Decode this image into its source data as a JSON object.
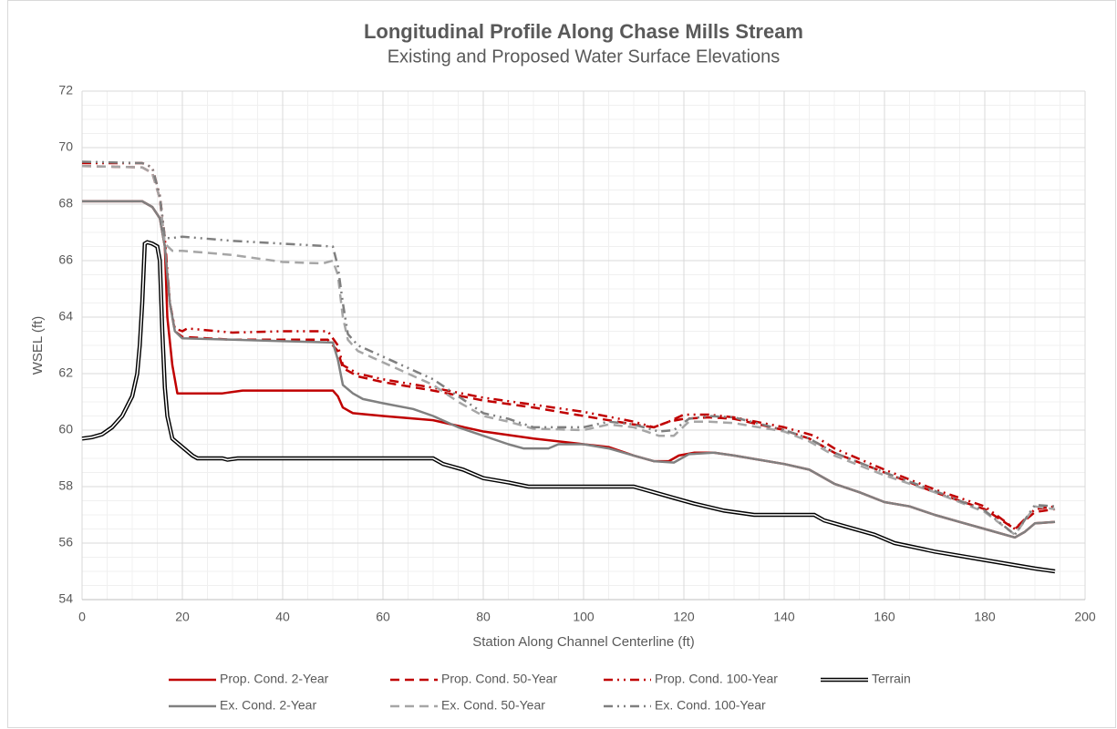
{
  "chart_data": {
    "type": "line",
    "title": "Longitudinal Profile Along Chase Mills Stream",
    "subtitle": "Existing and Proposed Water Surface Elevations",
    "x_label": "Station Along Channel Centerline (ft)",
    "y_label": "WSEL (ft)",
    "xlim": [
      0,
      200
    ],
    "xticks": [
      0,
      20,
      40,
      60,
      80,
      100,
      120,
      140,
      160,
      180,
      200
    ],
    "ylim": [
      54,
      72
    ],
    "yticks": [
      54,
      56,
      58,
      60,
      62,
      64,
      66,
      68,
      70,
      72
    ],
    "grid": true,
    "minor_grid": true,
    "legend": "bottom",
    "series": [
      {
        "name": "Prop. Cond. 2-Year",
        "color": "#c00000",
        "dash": "solid",
        "x": [
          0,
          12,
          14,
          15.5,
          16.5,
          17,
          18,
          19,
          28,
          30,
          32,
          50,
          51,
          52,
          54,
          60,
          70,
          75,
          80,
          90,
          100,
          105,
          110,
          114,
          117,
          119,
          122,
          126,
          130,
          140,
          145,
          150,
          155,
          160,
          165,
          170,
          175,
          180,
          186,
          188,
          190,
          194
        ],
        "values": [
          68.1,
          68.1,
          67.9,
          67.5,
          66.5,
          64,
          62.3,
          61.3,
          61.3,
          61.35,
          61.4,
          61.4,
          61.2,
          60.8,
          60.6,
          60.5,
          60.35,
          60.15,
          59.95,
          59.7,
          59.5,
          59.4,
          59.1,
          58.9,
          58.9,
          59.1,
          59.2,
          59.2,
          59.1,
          58.8,
          58.6,
          58.1,
          57.8,
          57.45,
          57.3,
          57,
          56.75,
          56.5,
          56.2,
          56.4,
          56.7,
          56.75
        ]
      },
      {
        "name": "Prop. Cond. 50-Year",
        "color": "#c00000",
        "dash": "dash",
        "x": [
          0,
          12,
          14,
          15.5,
          16.5,
          17.5,
          18.5,
          20,
          30,
          40,
          49,
          51,
          52,
          55,
          60,
          70,
          80,
          90,
          100,
          110,
          114,
          117,
          120,
          125,
          130,
          140,
          145,
          150,
          160,
          170,
          180,
          186,
          190,
          194
        ],
        "values": [
          69.35,
          69.3,
          69.1,
          68.2,
          66.5,
          64.5,
          63.5,
          63.3,
          63.2,
          63.2,
          63.2,
          62.8,
          62.2,
          61.9,
          61.7,
          61.4,
          61.05,
          60.8,
          60.5,
          60.2,
          60.1,
          60.3,
          60.4,
          60.45,
          60.4,
          60,
          59.7,
          59.2,
          58.5,
          57.8,
          57.2,
          56.5,
          57.1,
          57.2
        ]
      },
      {
        "name": "Prop. Cond. 100-Year",
        "color": "#c00000",
        "dash": "dashdot",
        "x": [
          0,
          12,
          14,
          15.5,
          16.5,
          17.5,
          18.5,
          20,
          21,
          30,
          40,
          49,
          51,
          52,
          55,
          60,
          70,
          80,
          90,
          100,
          110,
          114,
          117,
          120,
          125,
          130,
          140,
          146,
          150,
          160,
          170,
          180,
          186,
          190,
          194
        ],
        "values": [
          69.45,
          69.45,
          69.3,
          68.3,
          66.8,
          64.5,
          63.6,
          63.5,
          63.6,
          63.45,
          63.5,
          63.5,
          63,
          62.3,
          62,
          61.8,
          61.5,
          61.15,
          60.9,
          60.65,
          60.3,
          60.1,
          60.3,
          60.55,
          60.55,
          60.45,
          60.1,
          59.8,
          59.35,
          58.6,
          57.9,
          57.3,
          56.5,
          57.2,
          57.3
        ]
      },
      {
        "name": "Terrain",
        "color": "#000000",
        "dash": "double",
        "x": [
          0,
          2,
          4,
          6,
          8,
          10,
          11,
          11.5,
          12,
          12.5,
          13,
          14,
          15,
          15.5,
          16,
          16.5,
          17,
          18,
          20,
          22,
          23,
          28,
          29,
          31,
          70,
          72,
          76,
          80,
          85,
          89,
          110,
          114,
          118,
          122,
          128,
          134,
          146,
          148,
          152,
          158,
          162,
          166,
          170,
          180,
          190,
          194
        ],
        "values": [
          59.7,
          59.75,
          59.85,
          60.1,
          60.5,
          61.2,
          62,
          63,
          64.5,
          66.6,
          66.65,
          66.6,
          66.5,
          66,
          63.5,
          61.5,
          60.5,
          59.7,
          59.4,
          59.1,
          59,
          59,
          58.95,
          59,
          59,
          58.8,
          58.6,
          58.3,
          58.15,
          58,
          58,
          57.8,
          57.6,
          57.4,
          57.15,
          57,
          57,
          56.8,
          56.6,
          56.3,
          56,
          55.85,
          55.7,
          55.4,
          55.1,
          55
        ]
      },
      {
        "name": "Ex. Cond. 2-Year",
        "color": "#808080",
        "dash": "solid",
        "x": [
          0,
          12,
          14,
          15.5,
          16.5,
          17.5,
          18.5,
          20,
          30,
          40,
          50,
          51,
          52,
          54,
          56,
          60,
          66,
          70,
          75,
          80,
          85,
          88,
          93,
          95,
          100,
          105,
          110,
          114,
          118,
          121,
          126,
          130,
          140,
          145,
          150,
          155,
          160,
          165,
          170,
          175,
          180,
          186,
          188,
          190,
          194
        ],
        "values": [
          68.1,
          68.1,
          67.9,
          67.5,
          66.5,
          64.5,
          63.5,
          63.25,
          63.2,
          63.15,
          63.1,
          62.5,
          61.6,
          61.3,
          61.1,
          60.95,
          60.75,
          60.5,
          60.1,
          59.8,
          59.5,
          59.35,
          59.35,
          59.5,
          59.5,
          59.35,
          59.1,
          58.9,
          58.85,
          59.15,
          59.2,
          59.1,
          58.8,
          58.6,
          58.1,
          57.8,
          57.45,
          57.3,
          57,
          56.75,
          56.5,
          56.2,
          56.4,
          56.7,
          56.75
        ]
      },
      {
        "name": "Ex. Cond. 50-Year",
        "color": "#a6a6a6",
        "dash": "dash",
        "x": [
          0,
          12,
          14,
          15.5,
          16.5,
          18,
          20,
          30,
          40,
          48,
          50,
          51,
          52,
          53,
          55,
          60,
          70,
          75,
          80,
          85,
          90,
          100,
          105,
          110,
          115,
          118,
          121,
          125,
          130,
          140,
          145,
          150,
          160,
          170,
          180,
          186,
          190,
          194
        ],
        "values": [
          69.35,
          69.3,
          69.1,
          68.2,
          66.6,
          66.35,
          66.35,
          66.2,
          65.95,
          65.9,
          66,
          65.5,
          64,
          63.2,
          62.8,
          62.4,
          61.6,
          61,
          60.5,
          60.3,
          60.05,
          60,
          60.2,
          60.1,
          59.8,
          59.8,
          60.3,
          60.3,
          60.25,
          59.95,
          59.6,
          59.1,
          58.4,
          57.8,
          57.1,
          56.3,
          57.3,
          57.2
        ]
      },
      {
        "name": "Ex. Cond. 100-Year",
        "color": "#7f7f7f",
        "dash": "dashdot",
        "x": [
          0,
          12,
          14,
          15.5,
          16.5,
          18,
          20,
          30,
          40,
          50,
          51,
          52,
          53,
          55,
          60,
          70,
          75,
          80,
          85,
          90,
          100,
          105,
          110,
          115,
          118,
          121,
          125,
          130,
          140,
          145,
          150,
          160,
          170,
          180,
          186,
          190,
          194
        ],
        "values": [
          69.5,
          69.45,
          69.3,
          68.3,
          66.8,
          66.8,
          66.85,
          66.7,
          66.6,
          66.5,
          65.8,
          64.5,
          63.4,
          63,
          62.6,
          61.8,
          61.2,
          60.6,
          60.4,
          60.1,
          60.1,
          60.3,
          60.2,
          59.95,
          60,
          60.4,
          60.5,
          60.45,
          60,
          59.7,
          59.2,
          58.5,
          57.85,
          57.15,
          56.3,
          57.35,
          57.3
        ]
      }
    ]
  }
}
